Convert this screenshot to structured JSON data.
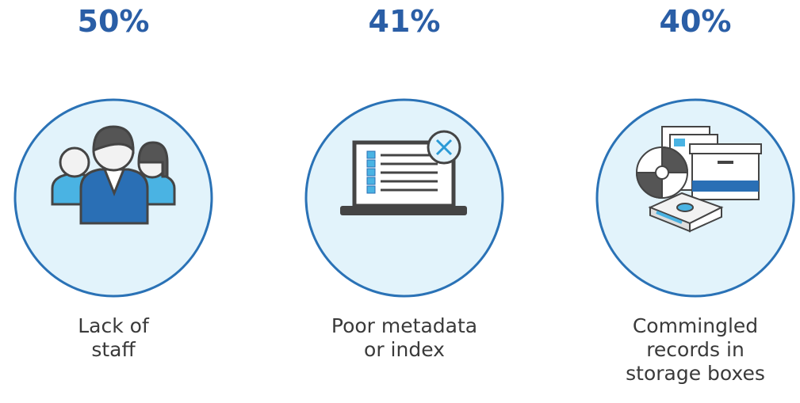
{
  "items": [
    {
      "stat": "50%",
      "label_lines": [
        "Lack of",
        "staff"
      ]
    },
    {
      "stat": "41%",
      "label_lines": [
        "Poor metadata",
        "or index"
      ]
    },
    {
      "stat": "40%",
      "label_lines": [
        "Commingled",
        "records in",
        "storage boxes"
      ]
    }
  ]
}
